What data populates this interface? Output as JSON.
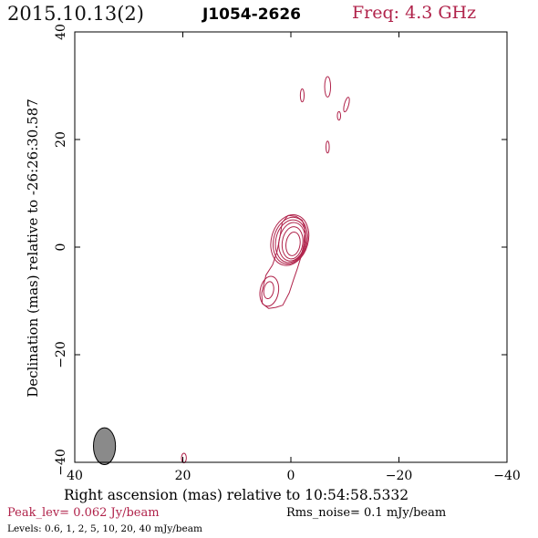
{
  "header": {
    "date": "2015.10.13(2)",
    "source": "J1054-2626",
    "frequency": "Freq: 4.3 GHz"
  },
  "footer": {
    "peak": "Peak_lev=  0.062 Jy/beam",
    "rms": "Rms_noise=   0.1 mJy/beam",
    "levels": "Levels: 0.6,    1,    2,    5,   10,   20,   40 mJy/beam"
  },
  "colors": {
    "contour": "#b0224a",
    "accent_text": "#b0224a",
    "beam_fill": "#8a8a8a"
  },
  "chart_data": {
    "type": "contour",
    "xlabel": "Right ascension (mas) relative to 10:54:58.5332",
    "ylabel": "Declination (mas) relative to -26:26:30.587",
    "xlim": [
      40,
      -40
    ],
    "ylim": [
      -40,
      40
    ],
    "x_ticks": [
      40,
      20,
      0,
      -20,
      -40
    ],
    "y_ticks": [
      -40,
      -20,
      0,
      20,
      40
    ],
    "x_tick_labels": [
      "40",
      "20",
      "0",
      "−20",
      "−40"
    ],
    "y_tick_labels": [
      "−40",
      "−20",
      "0",
      "20",
      "40"
    ],
    "contour_levels_mJy": [
      0.6,
      1,
      2,
      5,
      10,
      20,
      40
    ],
    "peak_Jy_per_beam": 0.062,
    "rms_mJy_per_beam": 0.1,
    "beam": {
      "x": 34.5,
      "y": -37,
      "major_mas": 3.6,
      "minor_mas": 1.7,
      "pa_deg": 0
    },
    "core_contours": [
      {
        "x": -0.4,
        "y": 0.6,
        "rx": 1.3,
        "ry": 2.2,
        "rot": 8
      },
      {
        "x": -0.3,
        "y": 0.8,
        "rx": 1.9,
        "ry": 3.0,
        "rot": 8
      },
      {
        "x": -0.2,
        "y": 1.0,
        "rx": 2.4,
        "ry": 3.6,
        "rot": 10
      },
      {
        "x": 0.0,
        "y": 1.1,
        "rx": 2.8,
        "ry": 4.0,
        "rot": 12
      },
      {
        "x": 0.1,
        "y": 1.2,
        "rx": 3.1,
        "ry": 4.4,
        "rot": 14
      },
      {
        "x": 0.2,
        "y": 1.3,
        "rx": 3.4,
        "ry": 4.8,
        "rot": 16
      }
    ],
    "jet_contours": [
      {
        "x": 4.1,
        "y": -8.0,
        "rx": 0.9,
        "ry": 1.6,
        "rot": 10
      },
      {
        "x": 4.0,
        "y": -8.2,
        "rx": 1.7,
        "ry": 2.8,
        "rot": 10
      }
    ],
    "outer_contour": [
      [
        -1.0,
        5.7
      ],
      [
        -2.1,
        5.0
      ],
      [
        -2.6,
        3.5
      ],
      [
        -2.4,
        0.5
      ],
      [
        -1.8,
        -2.0
      ],
      [
        -1.2,
        -4.0
      ],
      [
        -0.5,
        -6.0
      ],
      [
        0.3,
        -8.5
      ],
      [
        1.5,
        -10.8
      ],
      [
        2.8,
        -11.2
      ],
      [
        4.1,
        -11.4
      ],
      [
        5.3,
        -10.5
      ],
      [
        5.4,
        -8.5
      ],
      [
        4.6,
        -5.2
      ],
      [
        3.4,
        -3.3
      ],
      [
        2.6,
        -1.0
      ],
      [
        2.0,
        2.0
      ],
      [
        1.6,
        4.6
      ],
      [
        0.5,
        5.9
      ],
      [
        -1.0,
        5.7
      ]
    ],
    "blobs": [
      {
        "x": -6.8,
        "y": 29.8,
        "rx": 0.55,
        "ry": 1.9,
        "rot": 0
      },
      {
        "x": -2.1,
        "y": 28.2,
        "rx": 0.35,
        "ry": 1.2,
        "rot": 0
      },
      {
        "x": -10.3,
        "y": 26.5,
        "rx": 0.4,
        "ry": 1.4,
        "rot": 15
      },
      {
        "x": -8.9,
        "y": 24.4,
        "rx": 0.3,
        "ry": 0.8,
        "rot": 0
      },
      {
        "x": -6.8,
        "y": 18.6,
        "rx": 0.3,
        "ry": 1.1,
        "rot": 0
      },
      {
        "x": 19.8,
        "y": -39.2,
        "rx": 0.45,
        "ry": 0.9,
        "rot": 0
      }
    ]
  }
}
